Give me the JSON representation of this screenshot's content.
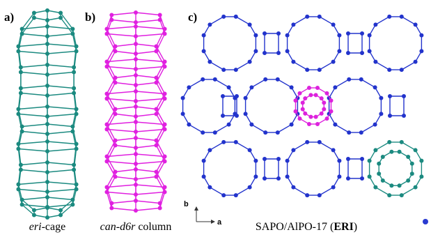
{
  "panels": [
    {
      "label": "a)",
      "caption": [
        "eri",
        "-cage"
      ]
    },
    {
      "label": "b)",
      "caption": [
        "can-d6r",
        " column"
      ]
    },
    {
      "label": "c)",
      "caption": [
        "SAPO/AlPO-17 (",
        "ERI",
        ")"
      ]
    }
  ],
  "axes": [
    "b",
    "a"
  ]
}
